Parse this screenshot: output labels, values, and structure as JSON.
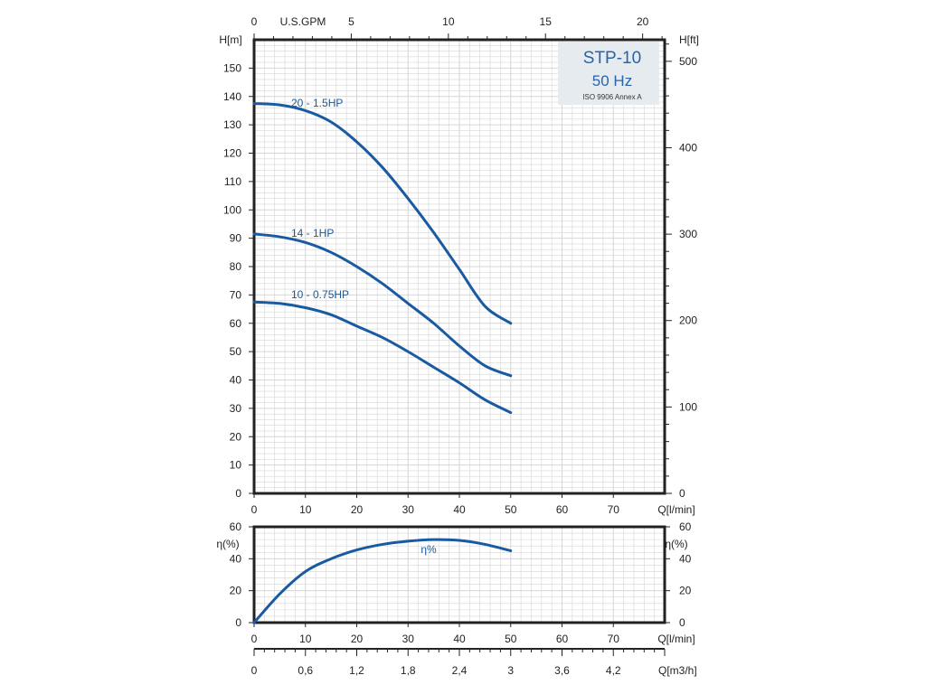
{
  "title_box": {
    "model": "STP-10",
    "frequency": "50 Hz",
    "standard": "ISO 9906 Annex A"
  },
  "colors": {
    "curve": "#1a5aa0",
    "frame": "#222222",
    "grid": "#d6d6d6",
    "title_box_bg": "#e6ebef",
    "title_text": "#2a64a8"
  },
  "chart_data": [
    {
      "type": "line",
      "name": "head",
      "x_unit_label": "Q[l/min]",
      "xlim": [
        0,
        80
      ],
      "x_ticks": [
        0,
        10,
        20,
        30,
        40,
        50,
        60,
        70
      ],
      "ylabel_left": "H[m]",
      "ylim": [
        0,
        160
      ],
      "y_ticks": [
        0,
        10,
        20,
        30,
        40,
        50,
        60,
        70,
        80,
        90,
        100,
        110,
        120,
        130,
        140,
        150
      ],
      "ylabel_right": "H[ft]",
      "y_right_ticks": [
        0,
        100,
        200,
        300,
        400,
        500
      ],
      "top_axis_label": "U.S.GPM",
      "top_axis_ticks": [
        0,
        5,
        10,
        15,
        20
      ],
      "grid": true,
      "series": [
        {
          "name": "20 - 1.5HP",
          "x": [
            0,
            5,
            10,
            15,
            20,
            25,
            30,
            35,
            40,
            45,
            50
          ],
          "y": [
            137.5,
            137,
            135,
            131,
            124,
            115,
            104,
            92,
            79,
            66,
            60
          ]
        },
        {
          "name": "14 - 1HP",
          "x": [
            0,
            5,
            10,
            15,
            20,
            25,
            30,
            35,
            40,
            45,
            50
          ],
          "y": [
            91.5,
            90.5,
            88.5,
            85,
            80,
            74,
            67,
            60,
            52,
            45,
            41.5
          ]
        },
        {
          "name": "10 - 0.75HP",
          "x": [
            0,
            5,
            10,
            15,
            20,
            25,
            30,
            35,
            40,
            45,
            50
          ],
          "y": [
            67.5,
            67,
            65.5,
            63,
            59,
            55,
            50,
            44.5,
            39,
            33,
            28.5
          ]
        }
      ]
    },
    {
      "type": "line",
      "name": "efficiency",
      "x_unit_label": "Q[l/min]",
      "xlim": [
        0,
        80
      ],
      "x_ticks": [
        0,
        10,
        20,
        30,
        40,
        50,
        60,
        70
      ],
      "ylabel_left": "η(%)",
      "ylabel_right": "η(%)",
      "ylim": [
        0,
        60
      ],
      "y_ticks": [
        0,
        20,
        40,
        60
      ],
      "bottom_axis_label": "Q[m3/h]",
      "bottom_axis_ticks": [
        "0",
        "0,6",
        "1,2",
        "1,8",
        "2,4",
        "3",
        "3,6",
        "4,2"
      ],
      "grid": true,
      "series": [
        {
          "name": "η%",
          "x": [
            0,
            5,
            10,
            15,
            20,
            25,
            30,
            35,
            40,
            45,
            50
          ],
          "y": [
            0,
            18,
            32,
            40,
            45.5,
            49,
            51,
            52,
            51.5,
            49,
            45
          ]
        }
      ]
    }
  ]
}
